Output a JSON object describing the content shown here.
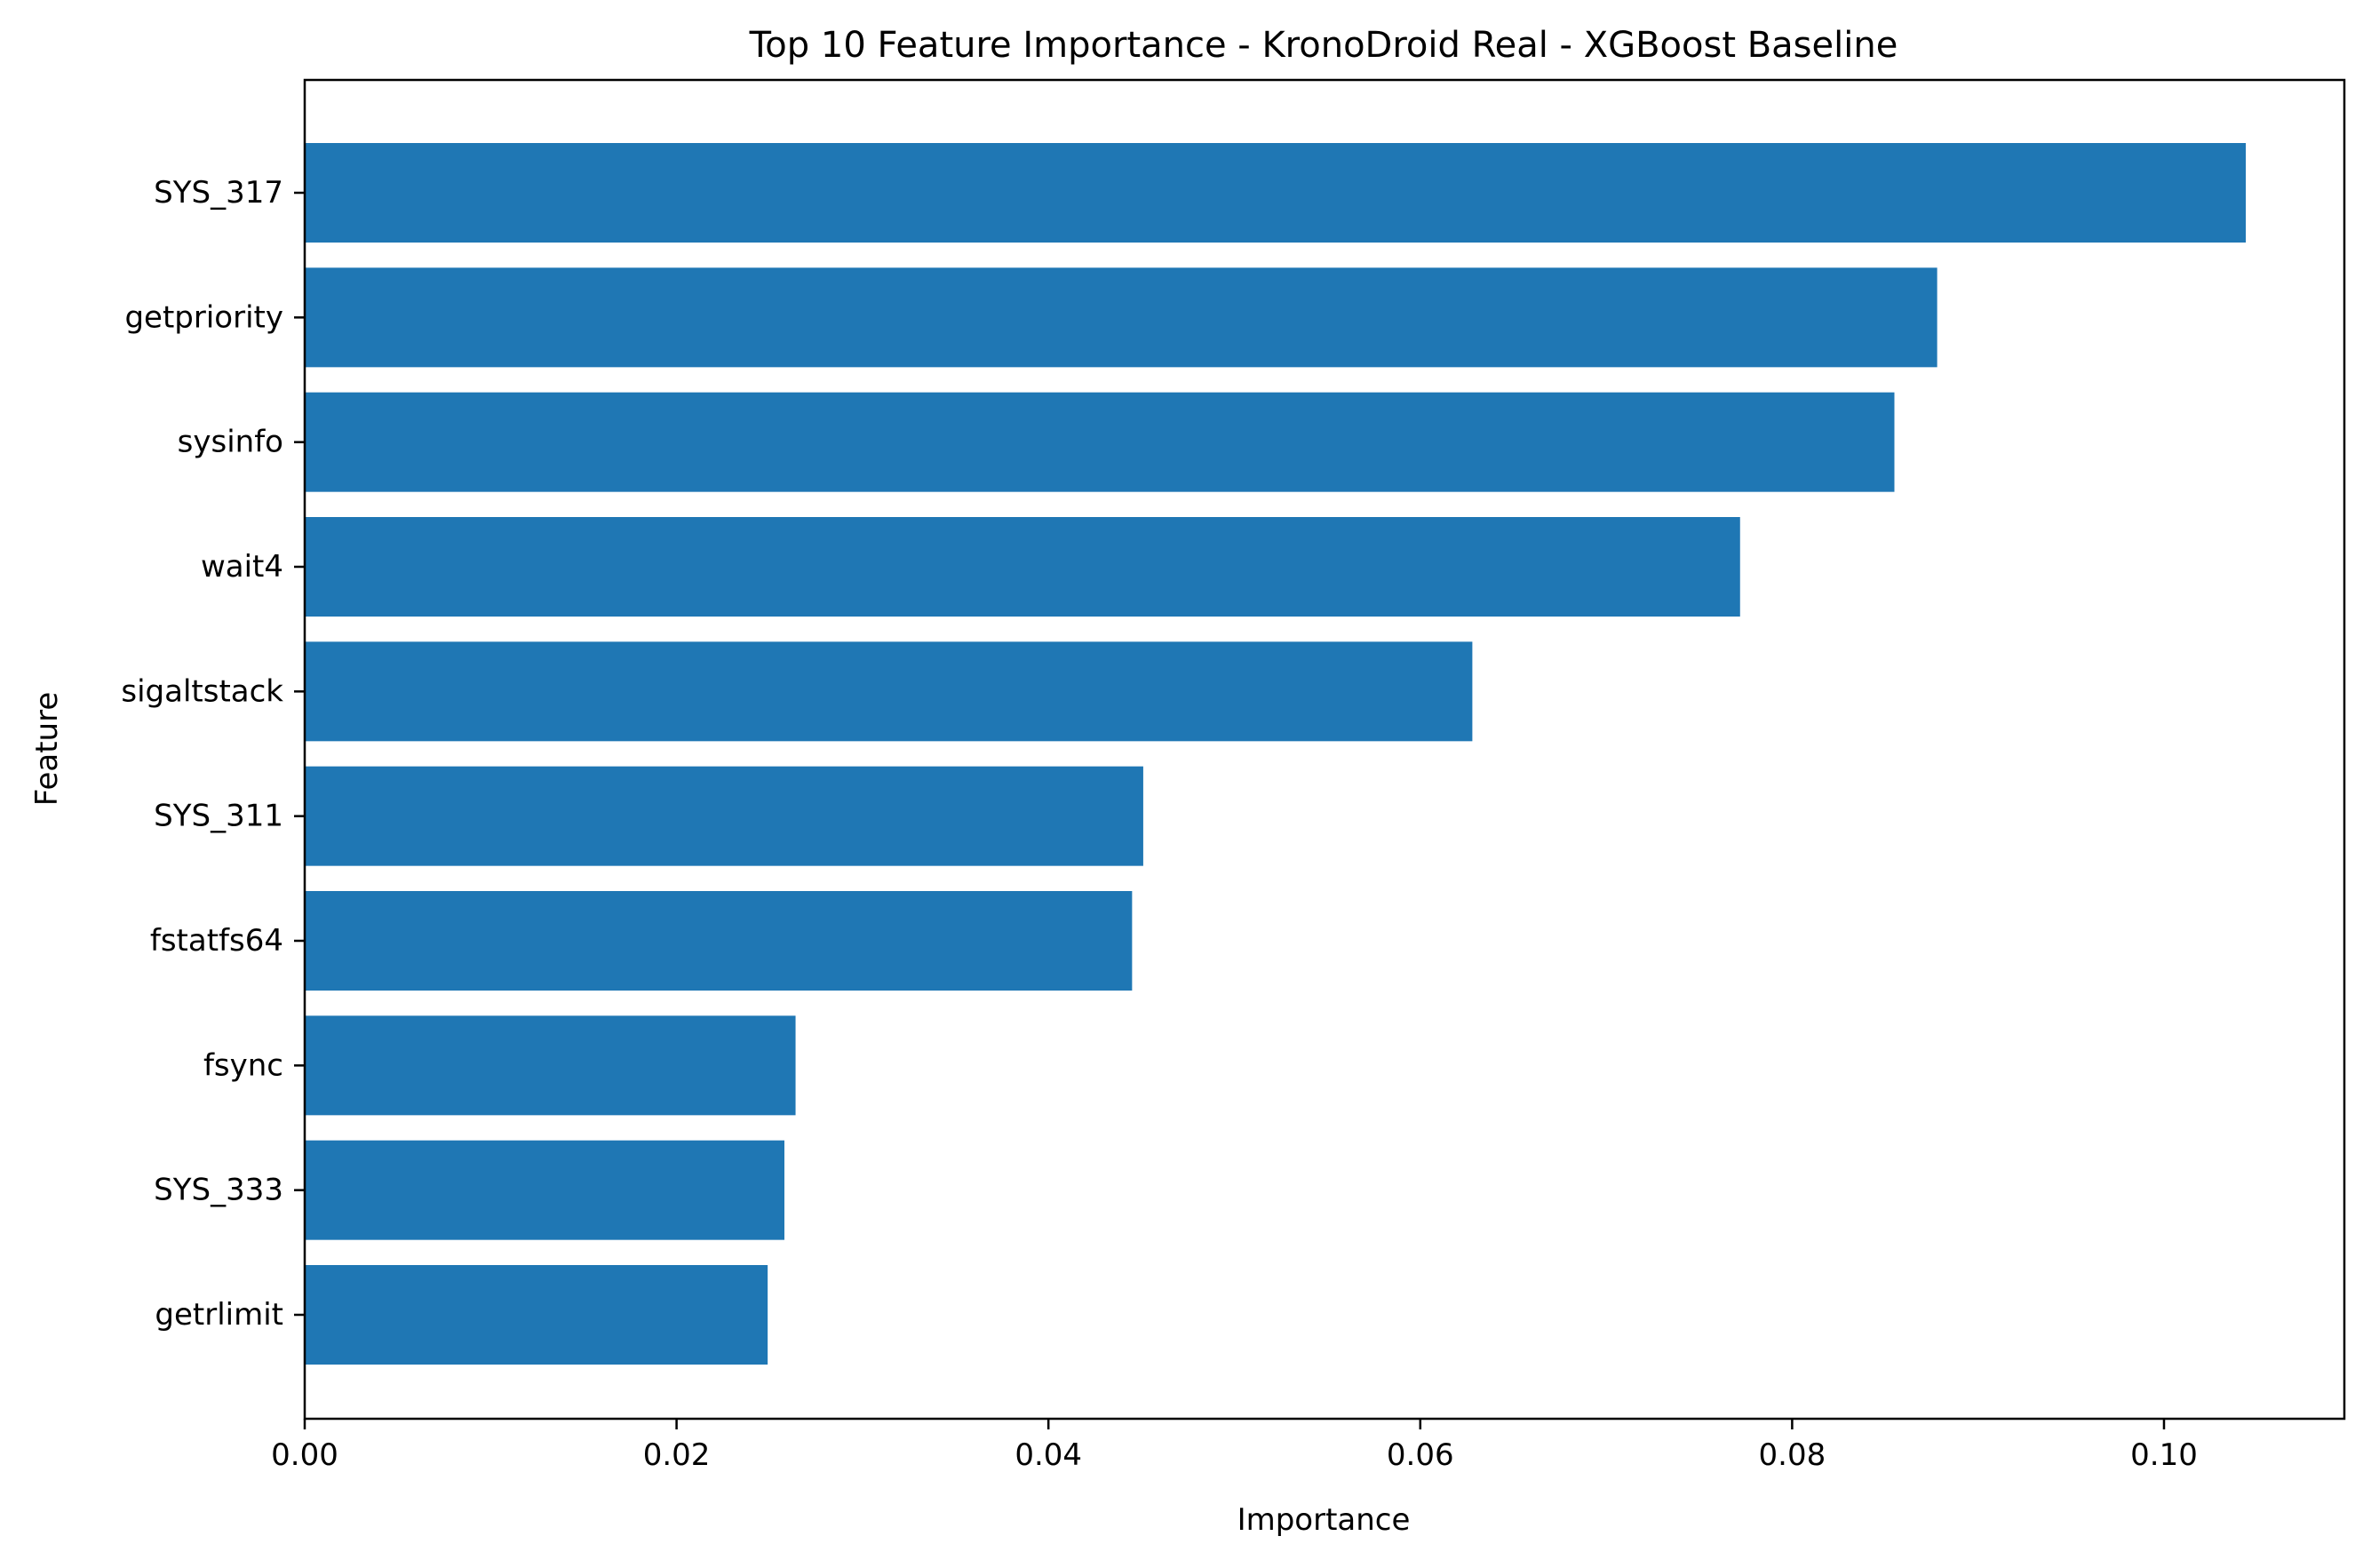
{
  "chart_data": {
    "type": "bar",
    "orientation": "horizontal",
    "title": "Top 10 Feature Importance - KronoDroid Real - XGBoost Baseline",
    "xlabel": "Importance",
    "ylabel": "Feature",
    "xlim": [
      0,
      0.1097
    ],
    "xticks": [
      0.0,
      0.02,
      0.04,
      0.06,
      0.08,
      0.1
    ],
    "xtick_labels": [
      "0.00",
      "0.02",
      "0.04",
      "0.06",
      "0.08",
      "0.10"
    ],
    "categories": [
      "SYS_317",
      "getpriority",
      "sysinfo",
      "wait4",
      "sigaltstack",
      "SYS_311",
      "fstatfs64",
      "fsync",
      "SYS_333",
      "getrlimit"
    ],
    "values": [
      0.1044,
      0.0878,
      0.0855,
      0.0772,
      0.0628,
      0.0451,
      0.0445,
      0.0264,
      0.0258,
      0.0249
    ],
    "bar_color": "#1f77b4",
    "grid": false,
    "legend": "none"
  }
}
